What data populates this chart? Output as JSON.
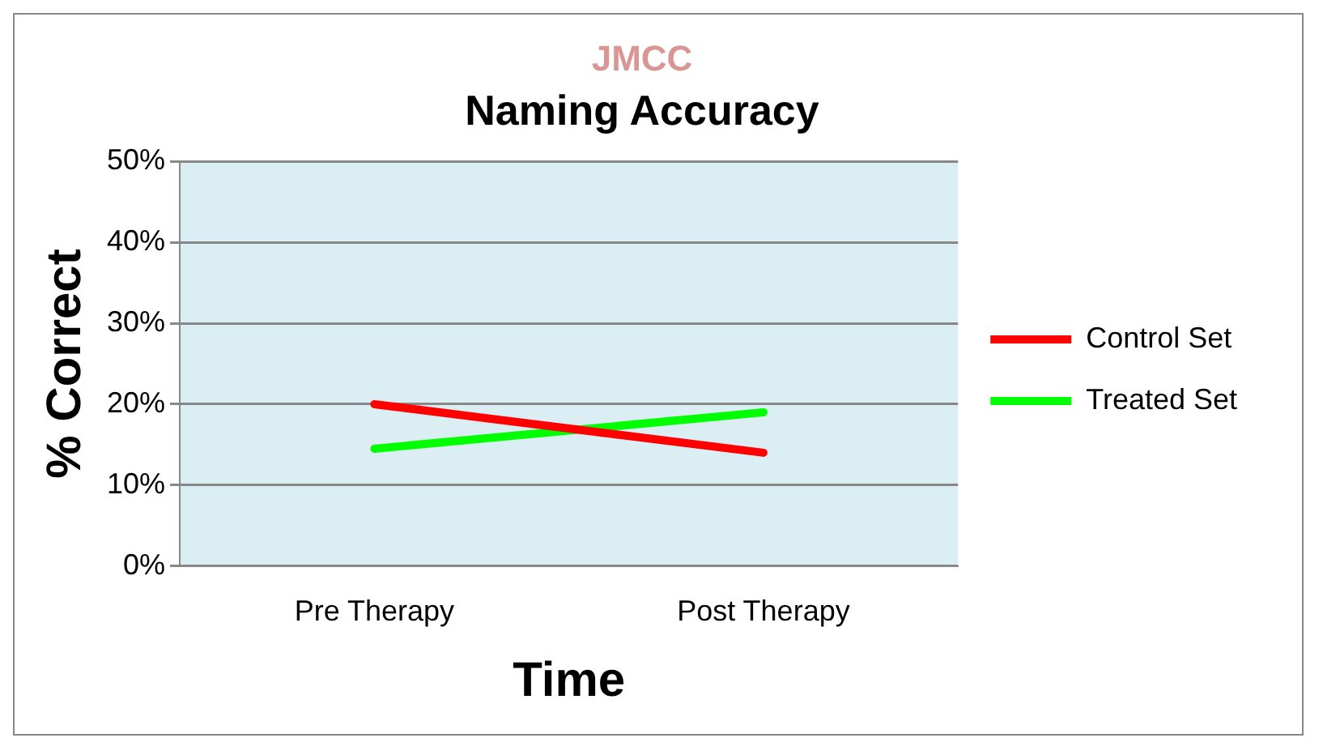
{
  "chart_data": {
    "type": "line",
    "title": "Naming Accuracy",
    "subtitle": "JMCC",
    "xlabel": "Time",
    "ylabel": "% Correct",
    "categories": [
      "Pre Therapy",
      "Post Therapy"
    ],
    "series": [
      {
        "name": "Control Set",
        "color": "#ff0000",
        "values": [
          20,
          14
        ]
      },
      {
        "name": "Treated Set",
        "color": "#00ff00",
        "values": [
          14.5,
          19
        ]
      }
    ],
    "ylim": [
      0,
      50
    ],
    "yticks": [
      {
        "value": 0,
        "label": "0%"
      },
      {
        "value": 10,
        "label": "10%"
      },
      {
        "value": 20,
        "label": "20%"
      },
      {
        "value": 30,
        "label": "30%"
      },
      {
        "value": 40,
        "label": "40%"
      },
      {
        "value": 50,
        "label": "50%"
      }
    ],
    "grid": "y",
    "legend": "right",
    "marker": "none",
    "line_style": "solid"
  }
}
